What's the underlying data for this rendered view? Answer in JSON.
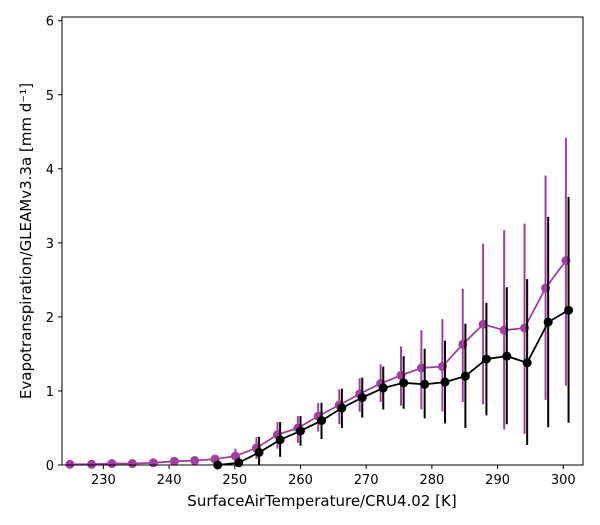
{
  "chart_data": {
    "type": "line",
    "xlabel": "SurfaceAirTemperature/CRU4.02 [K]",
    "ylabel": "Evapotranspiration/GLEAMv3.3a [mm d⁻¹]",
    "xlim": [
      223.7,
      303.0
    ],
    "ylim": [
      0,
      6.05
    ],
    "xticks": [
      230,
      240,
      250,
      260,
      270,
      280,
      290,
      300
    ],
    "yticks": [
      0,
      1,
      2,
      3,
      4,
      5,
      6
    ],
    "grid": false,
    "legend": "none",
    "colors": {
      "purple": "#a33ea1",
      "black": "#000000"
    },
    "series": [
      {
        "color": "#a33ea1",
        "points": [
          {
            "x": 224.9,
            "y": 0.01,
            "err": [
              0.0,
              0.02
            ]
          },
          {
            "x": 228.2,
            "y": 0.01,
            "err": [
              0.0,
              0.02
            ]
          },
          {
            "x": 231.3,
            "y": 0.02,
            "err": [
              0.0,
              0.03
            ]
          },
          {
            "x": 234.4,
            "y": 0.02,
            "err": [
              0.0,
              0.04
            ]
          },
          {
            "x": 237.6,
            "y": 0.03,
            "err": [
              0.0,
              0.05
            ]
          },
          {
            "x": 240.8,
            "y": 0.05,
            "err": [
              0.01,
              0.08
            ]
          },
          {
            "x": 243.9,
            "y": 0.06,
            "err": [
              0.02,
              0.1
            ]
          },
          {
            "x": 247.0,
            "y": 0.08,
            "err": [
              0.02,
              0.13
            ]
          },
          {
            "x": 250.1,
            "y": 0.12,
            "err": [
              0.03,
              0.22
            ]
          },
          {
            "x": 253.3,
            "y": 0.23,
            "err": [
              0.08,
              0.38
            ]
          },
          {
            "x": 256.5,
            "y": 0.41,
            "err": [
              0.22,
              0.58
            ]
          },
          {
            "x": 259.6,
            "y": 0.5,
            "err": [
              0.3,
              0.66
            ]
          },
          {
            "x": 262.7,
            "y": 0.66,
            "err": [
              0.45,
              0.84
            ]
          },
          {
            "x": 265.9,
            "y": 0.81,
            "err": [
              0.55,
              1.02
            ]
          },
          {
            "x": 269.0,
            "y": 0.96,
            "err": [
              0.72,
              1.17
            ]
          },
          {
            "x": 272.2,
            "y": 1.1,
            "err": [
              0.85,
              1.36
            ]
          },
          {
            "x": 275.3,
            "y": 1.21,
            "err": [
              0.8,
              1.6
            ]
          },
          {
            "x": 278.4,
            "y": 1.31,
            "err": [
              0.75,
              1.82
            ]
          },
          {
            "x": 281.6,
            "y": 1.33,
            "err": [
              0.72,
              1.97
            ]
          },
          {
            "x": 284.7,
            "y": 1.63,
            "err": [
              0.85,
              2.38
            ]
          },
          {
            "x": 287.8,
            "y": 1.9,
            "err": [
              0.82,
              2.99
            ]
          },
          {
            "x": 291.0,
            "y": 1.82,
            "err": [
              0.48,
              3.17
            ]
          },
          {
            "x": 294.1,
            "y": 1.85,
            "err": [
              0.42,
              3.26
            ]
          },
          {
            "x": 297.3,
            "y": 2.39,
            "err": [
              0.88,
              3.91
            ]
          },
          {
            "x": 300.4,
            "y": 2.76,
            "err": [
              1.07,
              4.42
            ]
          }
        ]
      },
      {
        "color": "#000000",
        "points": [
          {
            "x": 247.4,
            "y": 0.0,
            "err": [
              0.0,
              0.01
            ]
          },
          {
            "x": 250.6,
            "y": 0.03,
            "err": [
              0.0,
              0.1
            ]
          },
          {
            "x": 253.7,
            "y": 0.17,
            "err": [
              0.0,
              0.38
            ]
          },
          {
            "x": 256.9,
            "y": 0.34,
            "err": [
              0.11,
              0.58
            ]
          },
          {
            "x": 260.0,
            "y": 0.46,
            "err": [
              0.26,
              0.66
            ]
          },
          {
            "x": 263.2,
            "y": 0.6,
            "err": [
              0.35,
              0.84
            ]
          },
          {
            "x": 266.3,
            "y": 0.77,
            "err": [
              0.5,
              1.03
            ]
          },
          {
            "x": 269.4,
            "y": 0.91,
            "err": [
              0.64,
              1.18
            ]
          },
          {
            "x": 272.6,
            "y": 1.04,
            "err": [
              0.75,
              1.33
            ]
          },
          {
            "x": 275.7,
            "y": 1.11,
            "err": [
              0.76,
              1.47
            ]
          },
          {
            "x": 278.9,
            "y": 1.09,
            "err": [
              0.63,
              1.57
            ]
          },
          {
            "x": 282.0,
            "y": 1.12,
            "err": [
              0.56,
              1.68
            ]
          },
          {
            "x": 285.1,
            "y": 1.2,
            "err": [
              0.5,
              1.91
            ]
          },
          {
            "x": 288.3,
            "y": 1.43,
            "err": [
              0.67,
              2.19
            ]
          },
          {
            "x": 291.4,
            "y": 1.47,
            "err": [
              0.55,
              2.4
            ]
          },
          {
            "x": 294.5,
            "y": 1.38,
            "err": [
              0.27,
              2.51
            ]
          },
          {
            "x": 297.7,
            "y": 1.93,
            "err": [
              0.51,
              3.35
            ]
          },
          {
            "x": 300.8,
            "y": 2.09,
            "err": [
              0.57,
              3.62
            ]
          }
        ]
      }
    ]
  }
}
